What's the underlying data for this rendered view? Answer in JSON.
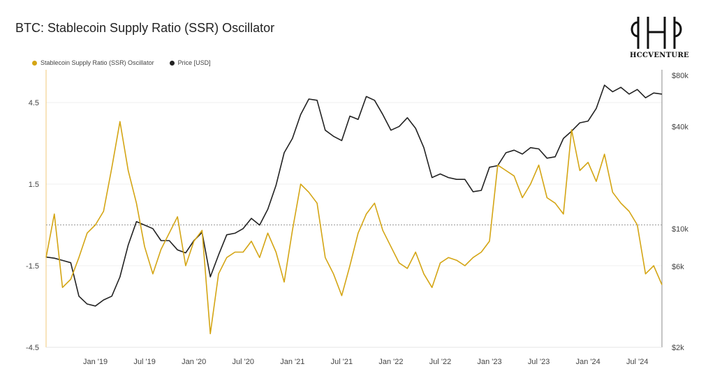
{
  "chart_data": {
    "type": "line",
    "title": "BTC: Stablecoin Supply Ratio (SSR) Oscillator",
    "x_tick_labels": [
      "Jan '19",
      "Jul '19",
      "Jan '20",
      "Jul '20",
      "Jan '21",
      "Jul '21",
      "Jan '22",
      "Jul '22",
      "Jan '23",
      "Jul '23",
      "Jan '24",
      "Jul '24"
    ],
    "x_range": [
      "2018-07",
      "2024-10"
    ],
    "y_left": {
      "ticks": [
        "4.5",
        "1.5",
        "-1.5",
        "-4.5"
      ],
      "range": [
        -4.5,
        5.5
      ]
    },
    "y_right": {
      "ticks": [
        "$80k",
        "$40k",
        "$10k",
        "$6k",
        "$2k"
      ],
      "scale": "log",
      "range": [
        2000,
        80000
      ]
    },
    "reference_line": {
      "axis": "left",
      "value": 0,
      "style": "dotted"
    },
    "legend_placement": "top-left",
    "series": [
      {
        "name": "Stablecoin Supply Ratio (SSR) Oscillator",
        "axis": "left",
        "color": "#d4a514",
        "x": [
          "2018-07",
          "2018-08",
          "2018-09",
          "2018-10",
          "2018-11",
          "2018-12",
          "2019-01",
          "2019-02",
          "2019-03",
          "2019-04",
          "2019-05",
          "2019-06",
          "2019-07",
          "2019-08",
          "2019-09",
          "2019-10",
          "2019-11",
          "2019-12",
          "2020-01",
          "2020-02",
          "2020-03",
          "2020-04",
          "2020-05",
          "2020-06",
          "2020-07",
          "2020-08",
          "2020-09",
          "2020-10",
          "2020-11",
          "2020-12",
          "2021-01",
          "2021-02",
          "2021-03",
          "2021-04",
          "2021-05",
          "2021-06",
          "2021-07",
          "2021-08",
          "2021-09",
          "2021-10",
          "2021-11",
          "2021-12",
          "2022-01",
          "2022-02",
          "2022-03",
          "2022-04",
          "2022-05",
          "2022-06",
          "2022-07",
          "2022-08",
          "2022-09",
          "2022-10",
          "2022-11",
          "2022-12",
          "2023-01",
          "2023-02",
          "2023-03",
          "2023-04",
          "2023-05",
          "2023-06",
          "2023-07",
          "2023-08",
          "2023-09",
          "2023-10",
          "2023-11",
          "2023-12",
          "2024-01",
          "2024-02",
          "2024-03",
          "2024-04",
          "2024-05",
          "2024-06",
          "2024-07",
          "2024-08",
          "2024-09",
          "2024-10"
        ],
        "values": [
          -1.2,
          0.4,
          -2.3,
          -2.0,
          -1.2,
          -0.3,
          0.0,
          0.5,
          2.1,
          3.8,
          2.0,
          0.8,
          -0.8,
          -1.8,
          -0.9,
          -0.3,
          0.3,
          -1.5,
          -0.6,
          -0.2,
          -4.0,
          -1.8,
          -1.2,
          -1.0,
          -1.0,
          -0.6,
          -1.2,
          -0.3,
          -1.0,
          -2.1,
          -0.2,
          1.5,
          1.2,
          0.8,
          -1.2,
          -1.8,
          -2.6,
          -1.5,
          -0.3,
          0.4,
          0.8,
          -0.2,
          -0.8,
          -1.4,
          -1.6,
          -1.0,
          -1.8,
          -2.3,
          -1.4,
          -1.2,
          -1.3,
          -1.5,
          -1.2,
          -1.0,
          -0.6,
          2.2,
          2.0,
          1.8,
          1.0,
          1.5,
          2.2,
          1.0,
          0.8,
          0.4,
          3.5,
          2.0,
          2.3,
          1.6,
          2.6,
          1.2,
          0.8,
          0.5,
          0.0,
          -1.8,
          -1.5,
          -2.2
        ]
      },
      {
        "name": "Price [USD]",
        "axis": "right",
        "color": "#222222",
        "x": [
          "2018-07",
          "2018-08",
          "2018-09",
          "2018-10",
          "2018-11",
          "2018-12",
          "2019-01",
          "2019-02",
          "2019-03",
          "2019-04",
          "2019-05",
          "2019-06",
          "2019-07",
          "2019-08",
          "2019-09",
          "2019-10",
          "2019-11",
          "2019-12",
          "2020-01",
          "2020-02",
          "2020-03",
          "2020-04",
          "2020-05",
          "2020-06",
          "2020-07",
          "2020-08",
          "2020-09",
          "2020-10",
          "2020-11",
          "2020-12",
          "2021-01",
          "2021-02",
          "2021-03",
          "2021-04",
          "2021-05",
          "2021-06",
          "2021-07",
          "2021-08",
          "2021-09",
          "2021-10",
          "2021-11",
          "2021-12",
          "2022-01",
          "2022-02",
          "2022-03",
          "2022-04",
          "2022-05",
          "2022-06",
          "2022-07",
          "2022-08",
          "2022-09",
          "2022-10",
          "2022-11",
          "2022-12",
          "2023-01",
          "2023-02",
          "2023-03",
          "2023-04",
          "2023-05",
          "2023-06",
          "2023-07",
          "2023-08",
          "2023-09",
          "2023-10",
          "2023-11",
          "2023-12",
          "2024-01",
          "2024-02",
          "2024-03",
          "2024-04",
          "2024-05",
          "2024-06",
          "2024-07",
          "2024-08",
          "2024-09",
          "2024-10"
        ],
        "values": [
          6800,
          6700,
          6500,
          6300,
          4000,
          3600,
          3500,
          3800,
          4000,
          5200,
          8000,
          11000,
          10500,
          10000,
          8500,
          8500,
          7500,
          7200,
          8500,
          9500,
          5200,
          7000,
          9200,
          9400,
          10000,
          11500,
          10500,
          13000,
          18000,
          28000,
          34000,
          47000,
          58000,
          57000,
          38000,
          35000,
          33000,
          46000,
          44000,
          60000,
          57000,
          47000,
          38000,
          40000,
          45000,
          39000,
          30000,
          20000,
          21000,
          20000,
          19500,
          19500,
          16500,
          16800,
          23000,
          23500,
          28000,
          29000,
          27500,
          30000,
          29500,
          26000,
          26500,
          34000,
          37500,
          42000,
          43000,
          51000,
          70000,
          64000,
          68000,
          62000,
          66000,
          59000,
          63000,
          62000
        ]
      }
    ]
  }
}
